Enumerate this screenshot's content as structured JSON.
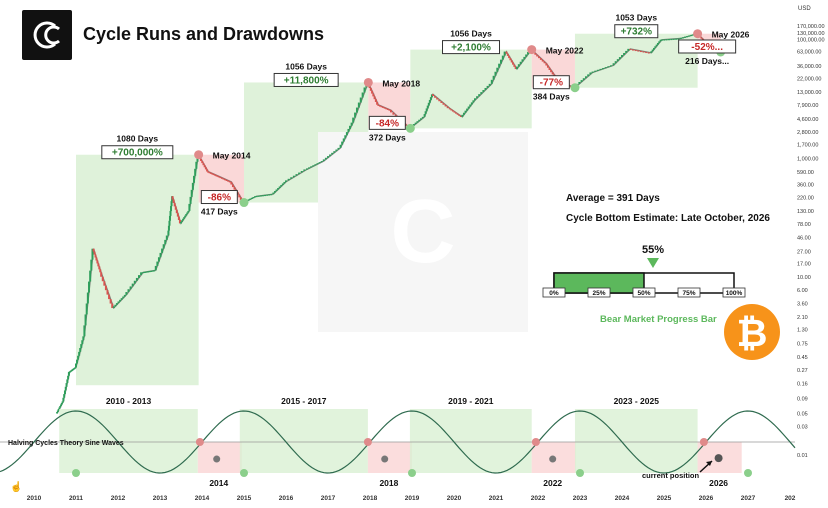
{
  "header": {
    "title": "Cycle Runs and Drawdowns",
    "logo": "cc-logo-icon"
  },
  "chart_data": {
    "type": "line",
    "title": "Cycle Runs and Drawdowns",
    "y_axis_title": "USD",
    "y_scale": "log",
    "ylim": [
      0.005,
      250000
    ],
    "xlim": [
      2010.0,
      2028.0
    ],
    "x_ticks": [
      "2010",
      "2011",
      "2012",
      "2013",
      "2014",
      "2015",
      "2016",
      "2017",
      "2018",
      "2019",
      "2020",
      "2021",
      "2022",
      "2023",
      "2024",
      "2025",
      "2026",
      "2027",
      "202"
    ],
    "y_ticks": [
      "170,000.00",
      "130,000.00",
      "100,000.00",
      "63,000.00",
      "36,000.00",
      "22,000.00",
      "13,000.00",
      "7,900.00",
      "4,600.00",
      "2,800.00",
      "1,700.00",
      "1,000.00",
      "590.00",
      "360.00",
      "220.00",
      "130.00",
      "78.00",
      "46.00",
      "27.00",
      "17.00",
      "10.00",
      "6.00",
      "3.60",
      "2.10",
      "1.30",
      "0.75",
      "0.45",
      "0.27",
      "0.16",
      "0.09",
      "0.05",
      "0.03",
      "0.01"
    ],
    "price_series": [
      {
        "x": 2010.55,
        "y": 0.05
      },
      {
        "x": 2010.7,
        "y": 0.08
      },
      {
        "x": 2010.85,
        "y": 0.25
      },
      {
        "x": 2011.0,
        "y": 0.3
      },
      {
        "x": 2011.2,
        "y": 1.0
      },
      {
        "x": 2011.42,
        "y": 30
      },
      {
        "x": 2011.6,
        "y": 12
      },
      {
        "x": 2011.9,
        "y": 3
      },
      {
        "x": 2012.2,
        "y": 5
      },
      {
        "x": 2012.6,
        "y": 12
      },
      {
        "x": 2012.9,
        "y": 13
      },
      {
        "x": 2013.2,
        "y": 50
      },
      {
        "x": 2013.3,
        "y": 230
      },
      {
        "x": 2013.5,
        "y": 80
      },
      {
        "x": 2013.7,
        "y": 130
      },
      {
        "x": 2013.92,
        "y": 1150
      },
      {
        "x": 2014.15,
        "y": 600
      },
      {
        "x": 2014.4,
        "y": 500
      },
      {
        "x": 2014.7,
        "y": 400
      },
      {
        "x": 2015.0,
        "y": 180
      },
      {
        "x": 2015.3,
        "y": 230
      },
      {
        "x": 2015.7,
        "y": 250
      },
      {
        "x": 2016.0,
        "y": 400
      },
      {
        "x": 2016.5,
        "y": 650
      },
      {
        "x": 2016.9,
        "y": 900
      },
      {
        "x": 2017.3,
        "y": 1500
      },
      {
        "x": 2017.6,
        "y": 4000
      },
      {
        "x": 2017.96,
        "y": 19000
      },
      {
        "x": 2018.2,
        "y": 8000
      },
      {
        "x": 2018.5,
        "y": 6500
      },
      {
        "x": 2018.96,
        "y": 3200
      },
      {
        "x": 2019.3,
        "y": 5000
      },
      {
        "x": 2019.5,
        "y": 12000
      },
      {
        "x": 2019.9,
        "y": 7000
      },
      {
        "x": 2020.2,
        "y": 5000
      },
      {
        "x": 2020.5,
        "y": 9500
      },
      {
        "x": 2020.9,
        "y": 18000
      },
      {
        "x": 2021.25,
        "y": 63000
      },
      {
        "x": 2021.5,
        "y": 32000
      },
      {
        "x": 2021.85,
        "y": 68000
      },
      {
        "x": 2022.2,
        "y": 40000
      },
      {
        "x": 2022.5,
        "y": 20000
      },
      {
        "x": 2022.88,
        "y": 15500
      },
      {
        "x": 2023.3,
        "y": 28000
      },
      {
        "x": 2023.8,
        "y": 37000
      },
      {
        "x": 2024.2,
        "y": 70000
      },
      {
        "x": 2024.7,
        "y": 60000
      },
      {
        "x": 2024.95,
        "y": 100000
      },
      {
        "x": 2025.4,
        "y": 105000
      },
      {
        "x": 2025.8,
        "y": 126000
      },
      {
        "x": 2026.05,
        "y": 85000
      },
      {
        "x": 2026.25,
        "y": 62000
      },
      {
        "x": 2026.35,
        "y": 66000
      }
    ],
    "cycles": [
      {
        "run_days": "1080 Days",
        "gain": "+700,000%",
        "top_label": "May 2014",
        "drawdown": "-86%",
        "bear_days": "417 Days"
      },
      {
        "run_days": "1056 Days",
        "gain": "+11,800%",
        "top_label": "May 2018",
        "drawdown": "-84%",
        "bear_days": "372 Days"
      },
      {
        "run_days": "1056 Days",
        "gain": "+2,100%",
        "top_label": "May 2022",
        "drawdown": "-77%",
        "bear_days": "384 Days"
      },
      {
        "run_days": "1053 Days",
        "gain": "+732%",
        "top_label": "May 2026",
        "drawdown": "-52%...",
        "bear_days": "216 Days..."
      }
    ],
    "average_label": "Average = 391 Days",
    "bottom_estimate_label": "Cycle Bottom Estimate: Late October, 2026",
    "progress": {
      "value_pct": 55,
      "value_label": "55%",
      "ticks": [
        "0%",
        "25%",
        "50%",
        "75%",
        "100%"
      ],
      "label": "Bear Market Progress Bar"
    },
    "sine": {
      "label": "Halving Cycles Theory Sine Waves",
      "cycle_labels": [
        "2010 - 2013",
        "2015 - 2017",
        "2019 - 2021",
        "2023 - 2025"
      ],
      "year_labels": [
        "2014",
        "2018",
        "2022",
        "2026"
      ],
      "current_position_label": "current position"
    },
    "colors": {
      "bull_zone": "#d9f0d3",
      "bear_zone": "#fad4d4",
      "up_candle": "#2e9e5b",
      "down_candle": "#d9534f",
      "gain_text": "#2e7d32",
      "loss_text": "#c62828",
      "bitcoin_orange": "#f7931a",
      "progress_green": "#5cb85c"
    }
  }
}
